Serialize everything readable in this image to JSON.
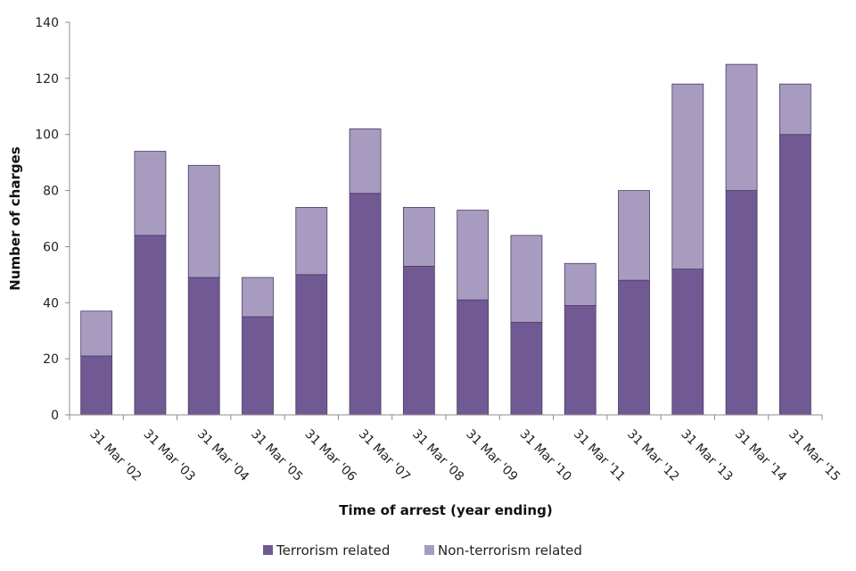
{
  "chart_data": {
    "type": "bar",
    "stacked": true,
    "categories": [
      "31 Mar '02",
      "31 Mar '03",
      "31 Mar '04",
      "31 Mar '05",
      "31 Mar '06",
      "31 Mar '07",
      "31 Mar '08",
      "31 Mar '09",
      "31 Mar '10",
      "31 Mar '11",
      "31 Mar '12",
      "31 Mar '13",
      "31 Mar '14",
      "31 Mar '15"
    ],
    "series": [
      {
        "name": "Terrorism related",
        "color": "#715a93",
        "values": [
          21,
          64,
          49,
          35,
          50,
          79,
          53,
          41,
          33,
          39,
          48,
          52,
          80,
          100
        ]
      },
      {
        "name": "Non-terrorism related",
        "color": "#a79cbf",
        "values": [
          16,
          30,
          40,
          14,
          24,
          23,
          21,
          32,
          31,
          15,
          32,
          66,
          45,
          18
        ]
      }
    ],
    "title": "",
    "xlabel": "Time of arrest (year ending)",
    "ylabel": "Number of charges",
    "ylim": [
      0,
      140
    ],
    "yticks": [
      "0",
      "20",
      "40",
      "60",
      "80",
      "100",
      "120",
      "140"
    ],
    "grid": false,
    "legend_position": "bottom"
  }
}
